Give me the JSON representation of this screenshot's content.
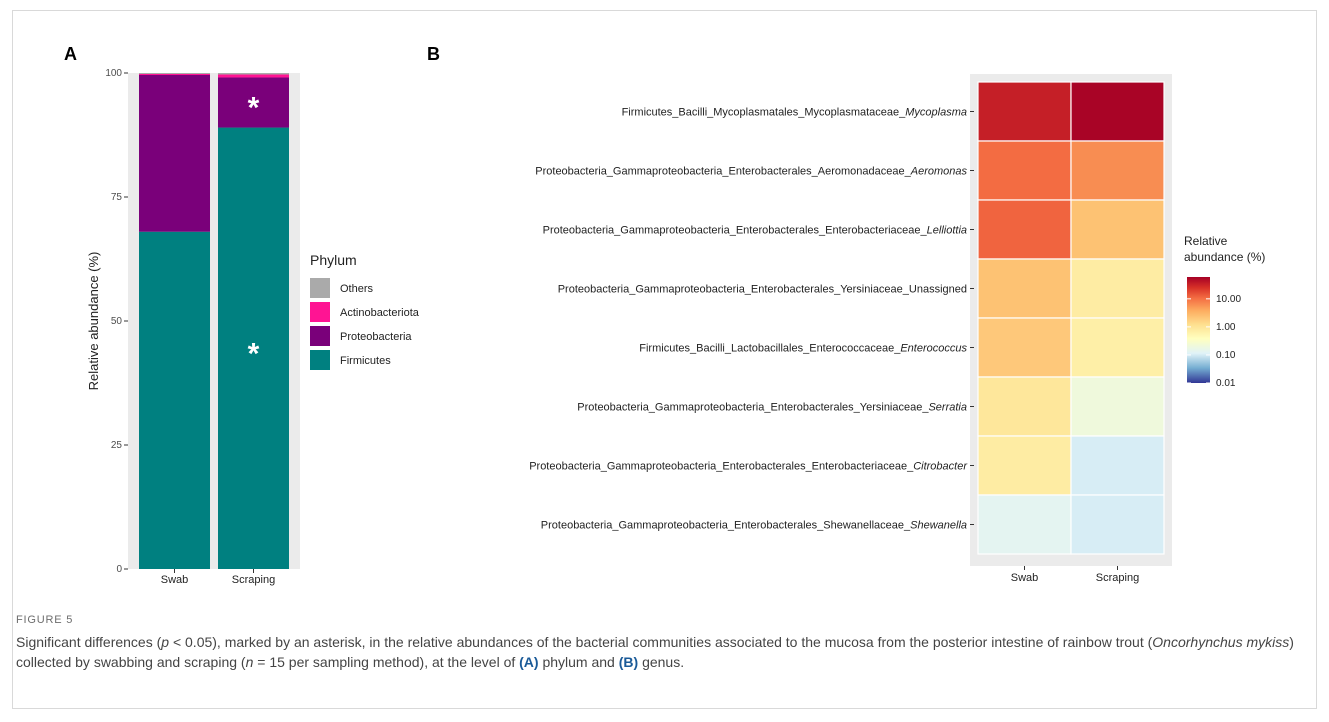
{
  "figure": {
    "label": "FIGURE 5",
    "caption_parts": [
      {
        "t": "Significant differences ("
      },
      {
        "t": "p",
        "i": true
      },
      {
        "t": " < 0.05), marked by an asterisk, in the relative abundances of the bacterial communities associated to the mucosa from the posterior intestine of rainbow trout ("
      },
      {
        "t": "Oncorhynchus mykiss",
        "i": true
      },
      {
        "t": ") collected by swabbing and scraping ("
      },
      {
        "t": "n",
        "i": true
      },
      {
        "t": " = 15 per sampling method), at the level of "
      },
      {
        "t": "(A)",
        "b": true
      },
      {
        "t": " phylum and "
      },
      {
        "t": "(B)",
        "b": true
      },
      {
        "t": " genus."
      }
    ]
  },
  "chart_data": [
    {
      "panel": "A",
      "type": "bar",
      "stacked": true,
      "categories": [
        "Swab",
        "Scraping"
      ],
      "ylabel": "Relative abundance (%)",
      "ylim": [
        0,
        100
      ],
      "yticks": [
        "0",
        "25",
        "50",
        "75",
        "100"
      ],
      "legend_title": "Phylum",
      "legend_position": "right",
      "series": [
        {
          "name": "Firmicutes",
          "color": "#008080",
          "values": [
            68,
            89
          ]
        },
        {
          "name": "Proteobacteria",
          "color": "#7a007a",
          "values": [
            31.6,
            10.1
          ]
        },
        {
          "name": "Actinobacteriota",
          "color": "#ff1493",
          "values": [
            0.2,
            0.6
          ]
        },
        {
          "name": "Others",
          "color": "#aaaaaa",
          "values": [
            0.2,
            0.3
          ]
        }
      ],
      "annotations": [
        {
          "text": "*",
          "category": "Scraping",
          "series": "Firmicutes"
        },
        {
          "text": "*",
          "category": "Scraping",
          "series": "Proteobacteria"
        }
      ]
    },
    {
      "panel": "B",
      "type": "heatmap",
      "x": [
        "Swab",
        "Scraping"
      ],
      "rows": [
        {
          "label": "Firmicutes_Bacilli_Mycoplasmatales_Mycoplasmataceae_",
          "genus": "Mycoplasma",
          "values": [
            30,
            55
          ]
        },
        {
          "label": "Proteobacteria_Gammaproteobacteria_Enterobacterales_Aeromonadaceae_",
          "genus": "Aeromonas",
          "values": [
            7,
            4
          ]
        },
        {
          "label": "Proteobacteria_Gammaproteobacteria_Enterobacterales_Enterobacteriaceae_",
          "genus": "Lelliottia",
          "values": [
            8,
            1.5
          ]
        },
        {
          "label": "Proteobacteria_Gammaproteobacteria_Enterobacterales_Yersiniaceae_Unassigned",
          "genus": "",
          "values": [
            1.5,
            0.5
          ]
        },
        {
          "label": "Firmicutes_Bacilli_Lactobacillales_Enterococcaceae_",
          "genus": "Enterococcus",
          "values": [
            1.3,
            0.45
          ]
        },
        {
          "label": "Proteobacteria_Gammaproteobacteria_Enterobacterales_Yersiniaceae_",
          "genus": "Serratia",
          "values": [
            0.6,
            0.15
          ]
        },
        {
          "label": "Proteobacteria_Gammaproteobacteria_Enterobacterales_Enterobacteriaceae_",
          "genus": "Citrobacter",
          "values": [
            0.5,
            0.08
          ]
        },
        {
          "label": "Proteobacteria_Gammaproteobacteria_Enterobacterales_Shewanellaceae_",
          "genus": "Shewanella",
          "values": [
            0.1,
            0.08
          ]
        }
      ],
      "scale": "log",
      "legend_title": [
        "Relative",
        "abundance (%)"
      ],
      "legend_ticks": [
        "10.00",
        "1.00",
        "0.10",
        "0.01"
      ],
      "legend_tick_values": [
        10,
        1,
        0.1,
        0.01
      ],
      "legend_range": [
        0.01,
        60
      ],
      "legend_position": "right",
      "colors": [
        "#313695",
        "#74add1",
        "#e0f3f8",
        "#ffffbf",
        "#fee090",
        "#fdae61",
        "#f46d43",
        "#d73027",
        "#a50026"
      ]
    }
  ]
}
